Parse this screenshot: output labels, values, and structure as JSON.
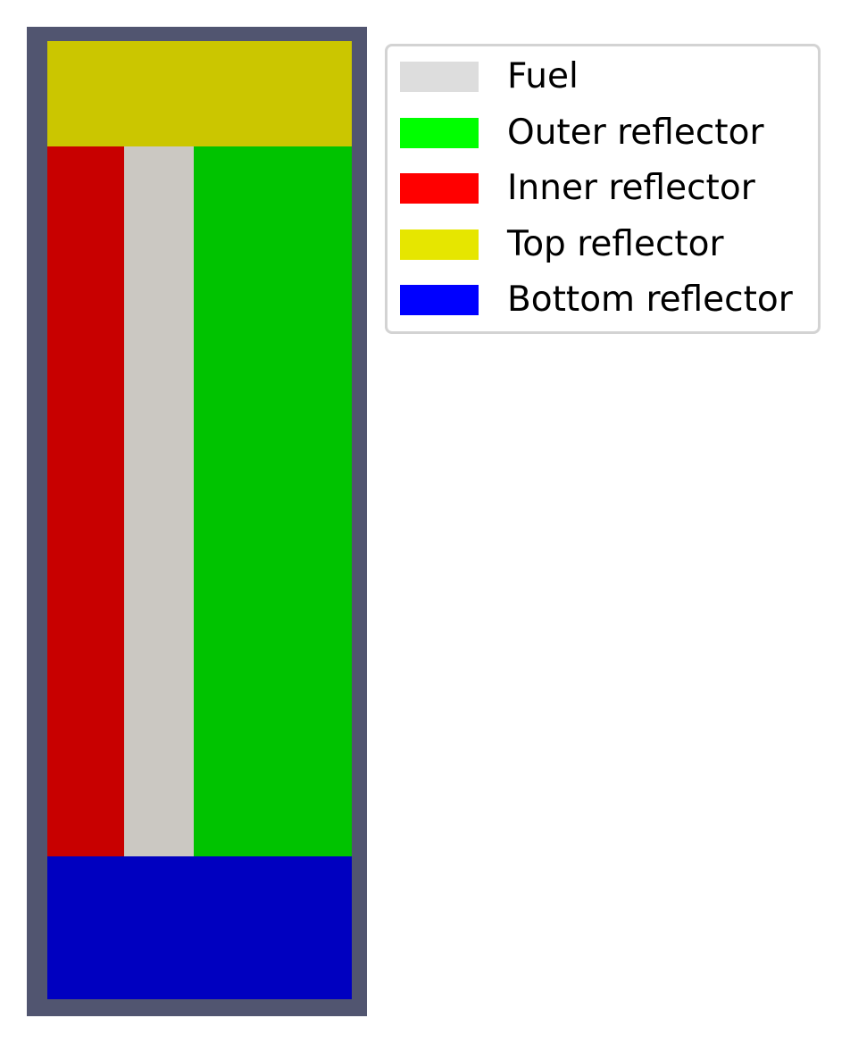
{
  "diagram": {
    "regions": [
      {
        "id": "outer-frame",
        "color": "#515570"
      },
      {
        "id": "top",
        "color": "#cbc600"
      },
      {
        "id": "inner",
        "color": "#c80000"
      },
      {
        "id": "fuel",
        "color": "#cbc8c2"
      },
      {
        "id": "outer",
        "color": "#00c300"
      },
      {
        "id": "bottom",
        "color": "#0000c0"
      }
    ]
  },
  "legend": {
    "items": [
      {
        "label": "Fuel",
        "color": "#dddddd"
      },
      {
        "label": "Outer reflector",
        "color": "#00ff00"
      },
      {
        "label": "Inner reflector",
        "color": "#ff0000"
      },
      {
        "label": "Top reflector",
        "color": "#e6e600"
      },
      {
        "label": "Bottom reflector",
        "color": "#0000ff"
      }
    ]
  }
}
